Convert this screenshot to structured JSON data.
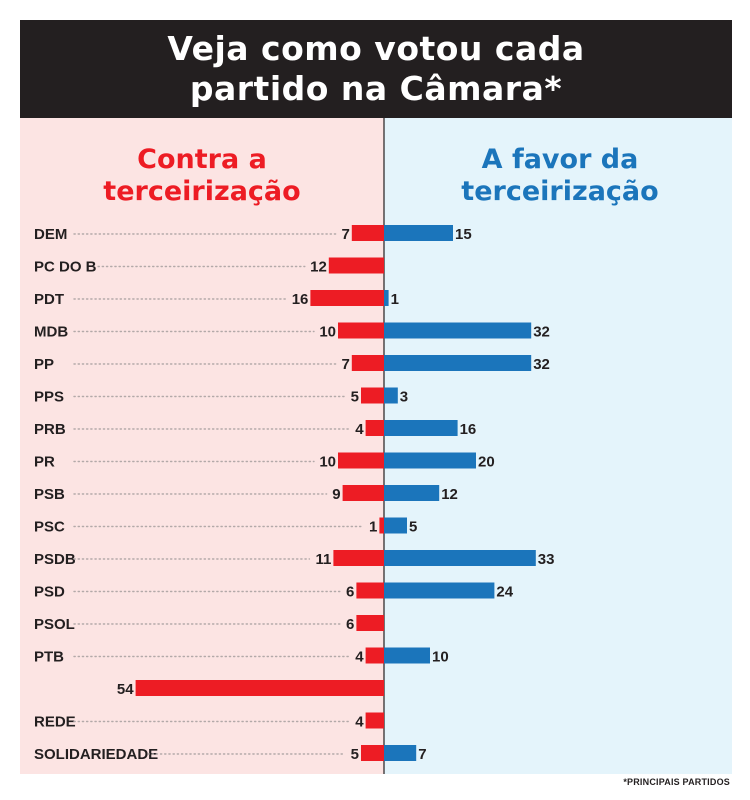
{
  "header": {
    "title_line1": "Veja como votou cada",
    "title_line2": "partido na Câmara*"
  },
  "footnote": "*PRINCIPAIS PARTIDOS",
  "chart_data": {
    "type": "bar",
    "orientation": "horizontal-diverging",
    "categories": [
      "DEM",
      "PC DO B",
      "PDT",
      "MDB",
      "PP",
      "PPS",
      "PRB",
      "PR",
      "PSB",
      "PSC",
      "PSDB",
      "PSD",
      "PSOL",
      "PTB",
      "",
      "REDE",
      "SOLIDARIEDADE"
    ],
    "series": [
      {
        "name": "Contra a terceirização",
        "color": "#ed1c24",
        "side": "left",
        "values": [
          7,
          12,
          16,
          10,
          7,
          5,
          4,
          10,
          9,
          1,
          11,
          6,
          6,
          4,
          54,
          4,
          5
        ]
      },
      {
        "name": "A favor da terceirização",
        "color": "#1b75bb",
        "side": "right",
        "values": [
          15,
          null,
          1,
          32,
          32,
          3,
          16,
          20,
          12,
          5,
          33,
          24,
          null,
          10,
          null,
          null,
          7
        ]
      }
    ],
    "colors": {
      "left_background": "#fce4e3",
      "right_background": "#e4f4fb",
      "left_title": "#ed1c24",
      "right_title": "#1b75bb",
      "text": "#231f20"
    }
  }
}
